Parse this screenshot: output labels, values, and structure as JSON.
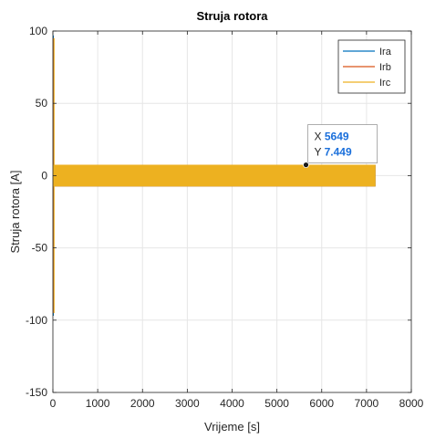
{
  "chart_data": {
    "type": "line",
    "title": "Struja rotora",
    "xlabel": "Vrijeme [s]",
    "ylabel": "Struja rotora [A]",
    "xlim": [
      0,
      8000
    ],
    "ylim": [
      -150,
      100
    ],
    "xticks": [
      0,
      1000,
      2000,
      3000,
      4000,
      5000,
      6000,
      7000,
      8000
    ],
    "yticks": [
      -150,
      -100,
      -50,
      0,
      50,
      100
    ],
    "xtick_labels": [
      "0",
      "1000",
      "2000",
      "3000",
      "4000",
      "5000",
      "6000",
      "7000",
      "8000"
    ],
    "ytick_labels": [
      "-150",
      "-100",
      "-50",
      "0",
      "50",
      "100"
    ],
    "grid": true,
    "legend_position": "top-right",
    "series": [
      {
        "name": "Ira",
        "color": "#0072BD",
        "x_range": [
          0,
          7200
        ],
        "steady_amplitude": 7.5,
        "initial_transient": [
          -97,
          97
        ]
      },
      {
        "name": "Irb",
        "color": "#D95319",
        "x_range": [
          0,
          7200
        ],
        "steady_amplitude": 7.5,
        "initial_transient": [
          -95,
          95
        ]
      },
      {
        "name": "Irc",
        "color": "#EDB120",
        "x_range": [
          0,
          7200
        ],
        "steady_amplitude": 7.5,
        "initial_transient": [
          -95,
          95
        ]
      }
    ],
    "datatip": {
      "x": 5649,
      "y": 7.449,
      "x_label": "X",
      "y_label": "Y",
      "x_text": "5649",
      "y_text": "7.449"
    }
  }
}
